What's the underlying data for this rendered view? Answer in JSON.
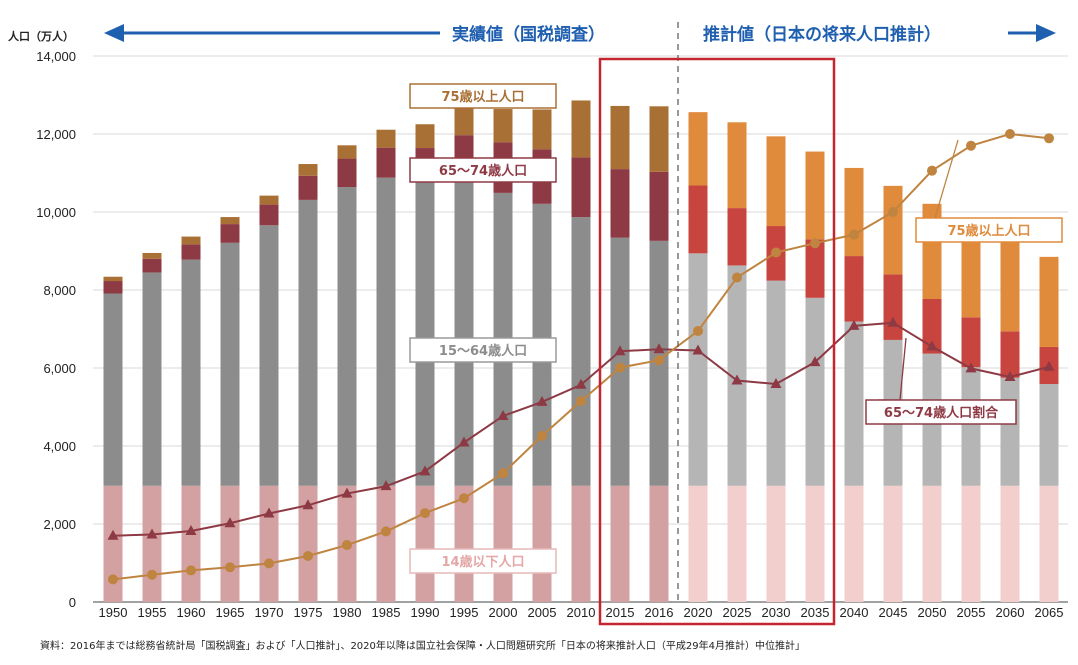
{
  "chart_data": {
    "type": "bar",
    "stacked": true,
    "unit_label": "人口（万人）",
    "categories": [
      "1950",
      "1955",
      "1960",
      "1965",
      "1970",
      "1975",
      "1980",
      "1985",
      "1990",
      "1995",
      "2000",
      "2005",
      "2010",
      "2015",
      "2016",
      "2020",
      "2025",
      "2030",
      "2035",
      "2040",
      "2045",
      "2050",
      "2055",
      "2060",
      "2065"
    ],
    "projection_start_index": 15,
    "ylim": [
      0,
      14000
    ],
    "yticks": [
      "0",
      "2,000",
      "4,000",
      "6,000",
      "8,000",
      "10,000",
      "12,000",
      "14,000"
    ],
    "ytick_values": [
      0,
      2000,
      4000,
      6000,
      8000,
      10000,
      12000,
      14000
    ],
    "series": [
      {
        "key": "u14",
        "values": [
          2980,
          2980,
          2980,
          2980,
          2980,
          2980,
          2980,
          2980,
          2980,
          2980,
          2980,
          2980,
          2980,
          2980,
          2980,
          2980,
          2980,
          2980,
          2980,
          2980,
          2980,
          2980,
          2980,
          2980,
          2980
        ],
        "color_actual": "#d3a1a1",
        "color_projection": "#f2cfcc"
      },
      {
        "key": "a15_64",
        "values": [
          4930,
          5470,
          5800,
          6230,
          6680,
          7330,
          7660,
          7900,
          7810,
          7990,
          7510,
          7230,
          6890,
          6360,
          6280,
          5960,
          5650,
          5260,
          4820,
          4210,
          3740,
          3390,
          3040,
          2770,
          2610
        ],
        "color_actual": "#8c8c8c",
        "color_projection": "#b5b5b5"
      },
      {
        "key": "a65_74",
        "values": [
          320,
          350,
          390,
          480,
          530,
          620,
          730,
          770,
          850,
          1000,
          1300,
          1400,
          1530,
          1760,
          1770,
          1740,
          1470,
          1400,
          1500,
          1680,
          1680,
          1400,
          1280,
          1190,
          950
        ],
        "color_actual": "#8e3a45",
        "color_projection": "#c8443e"
      },
      {
        "key": "a75",
        "values": [
          110,
          150,
          200,
          180,
          230,
          300,
          340,
          460,
          610,
          750,
          850,
          1020,
          1460,
          1620,
          1680,
          1880,
          2200,
          2300,
          2250,
          2260,
          2270,
          2440,
          2530,
          2410,
          2310
        ],
        "color_actual": "#a97036",
        "color_projection": "#e08a3c"
      }
    ],
    "lines": [
      {
        "key": "ratio_65_74",
        "color": "#8e3a45",
        "marker": "triangle",
        "values": [
          1700,
          1730,
          1820,
          2020,
          2270,
          2480,
          2780,
          2970,
          3350,
          4090,
          4770,
          5130,
          5570,
          6430,
          6480,
          6450,
          5680,
          5590,
          6150,
          7080,
          7160,
          6550,
          5990,
          5770,
          6030
        ]
      },
      {
        "key": "ratio_75",
        "color": "#bf8440",
        "marker": "circle",
        "values": [
          580,
          700,
          810,
          890,
          990,
          1180,
          1460,
          1810,
          2280,
          2660,
          3300,
          4260,
          5150,
          6010,
          6200,
          6950,
          8320,
          8960,
          9200,
          9420,
          10000,
          11060,
          11700,
          12000,
          11890
        ]
      }
    ]
  },
  "header": {
    "actual_label": "実績値（国税調査）",
    "projection_label": "推計値（日本の将来人口推計）"
  },
  "labels": {
    "a75_actual": "75歳以上人口",
    "a65_74_actual": "65〜74歳人口",
    "a15_64": "15〜64歳人口",
    "u14": "14歳以下人口",
    "a75_projection": "75歳以上人口",
    "ratio_65_74": "65〜74歳人口割合"
  },
  "colors": {
    "arrow": "#1f5fb0",
    "highlight_box": "#c3262e",
    "divider": "#555555"
  },
  "source": "資料：2016年までは総務省統計局「国税調査」および「人口推計」、2020年以降は国立社会保障・人口問題研究所「日本の将来推計人口（平成29年4月推計）中位推計」"
}
